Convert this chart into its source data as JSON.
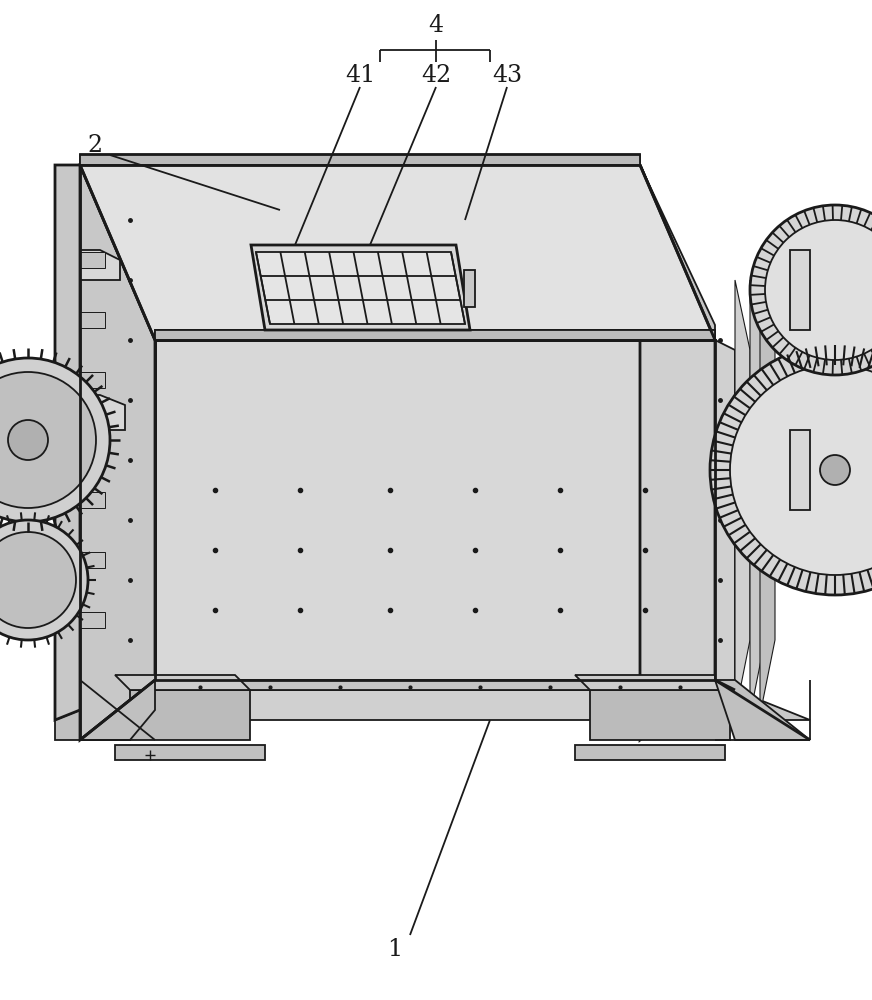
{
  "bg_color": "#ffffff",
  "lc": "#1a1a1a",
  "fill_top": "#e8e8e8",
  "fill_front": "#d8d8d8",
  "fill_side_left": "#c8c8c8",
  "fill_side_right": "#d2d2d2",
  "fill_frame": "#c0c0c0",
  "fill_gear": "#d5d5d5",
  "fill_gear_dark": "#b0b0b0",
  "label_4": "4",
  "label_41": "41",
  "label_42": "42",
  "label_43": "43",
  "label_2": "2",
  "label_1": "1"
}
